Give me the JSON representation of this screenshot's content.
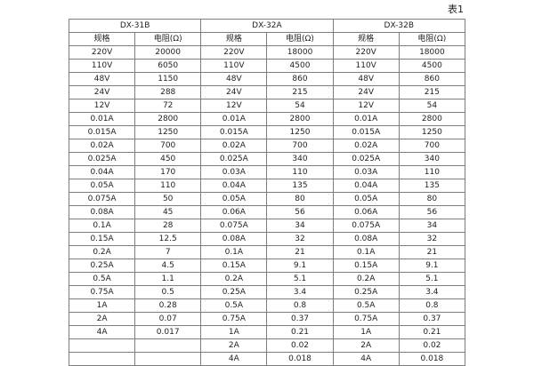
{
  "caption": "表1",
  "table": {
    "groups": [
      {
        "label": "DX-31B"
      },
      {
        "label": "DX-32A"
      },
      {
        "label": "DX-32B"
      }
    ],
    "sub_headers": [
      "规格",
      "电阻(Ω)"
    ],
    "rows": [
      [
        "220V",
        "20000",
        "220V",
        "18000",
        "220V",
        "18000"
      ],
      [
        "110V",
        "6050",
        "110V",
        "4500",
        "110V",
        "4500"
      ],
      [
        "48V",
        "1150",
        "48V",
        "860",
        "48V",
        "860"
      ],
      [
        "24V",
        "288",
        "24V",
        "215",
        "24V",
        "215"
      ],
      [
        "12V",
        "72",
        "12V",
        "54",
        "12V",
        "54"
      ],
      [
        "0.01A",
        "2800",
        "0.01A",
        "2800",
        "0.01A",
        "2800"
      ],
      [
        "0.015A",
        "1250",
        "0.015A",
        "1250",
        "0.015A",
        "1250"
      ],
      [
        "0.02A",
        "700",
        "0.02A",
        "700",
        "0.02A",
        "700"
      ],
      [
        "0.025A",
        "450",
        "0.025A",
        "340",
        "0.025A",
        "340"
      ],
      [
        "0.04A",
        "170",
        "0.03A",
        "110",
        "0.03A",
        "110"
      ],
      [
        "0.05A",
        "110",
        "0.04A",
        "135",
        "0.04A",
        "135"
      ],
      [
        "0.075A",
        "50",
        "0.05A",
        "80",
        "0.05A",
        "80"
      ],
      [
        "0.08A",
        "45",
        "0.06A",
        "56",
        "0.06A",
        "56"
      ],
      [
        "0.1A",
        "28",
        "0.075A",
        "34",
        "0.075A",
        "34"
      ],
      [
        "0.15A",
        "12.5",
        "0.08A",
        "32",
        "0.08A",
        "32"
      ],
      [
        "0.2A",
        "7",
        "0.1A",
        "21",
        "0.1A",
        "21"
      ],
      [
        "0.25A",
        "4.5",
        "0.15A",
        "9.1",
        "0.15A",
        "9.1"
      ],
      [
        "0.5A",
        "1.1",
        "0.2A",
        "5.1",
        "0.2A",
        "5.1"
      ],
      [
        "0.75A",
        "0.5",
        "0.25A",
        "3.4",
        "0.25A",
        "3.4"
      ],
      [
        "1A",
        "0.28",
        "0.5A",
        "0.8",
        "0.5A",
        "0.8"
      ],
      [
        "2A",
        "0.07",
        "0.75A",
        "0.37",
        "0.75A",
        "0.37"
      ],
      [
        "4A",
        "0.017",
        "1A",
        "0.21",
        "1A",
        "0.21"
      ],
      [
        "",
        "",
        "2A",
        "0.02",
        "2A",
        "0.02"
      ],
      [
        "",
        "",
        "4A",
        "0.018",
        "4A",
        "0.018"
      ]
    ]
  },
  "colors": {
    "background": "#ffffff",
    "border": "#7d7d7d",
    "text": "#1f1f1f"
  }
}
